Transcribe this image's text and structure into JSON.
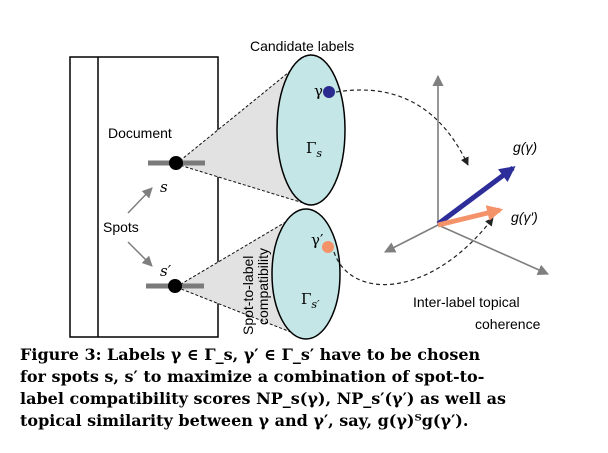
{
  "diagram": {
    "candidate_labels": "Candidate labels",
    "document": "Document",
    "spots": "Spots",
    "spot_s": "s",
    "spot_s_prime": "s′",
    "gamma": "γ",
    "gamma_prime": "γ′",
    "gamma_set_base": "Γ",
    "gamma_set_sub_s": "s",
    "gamma_set_sub_sp": "s′",
    "spot_to_label_line1": "Spot-to-label",
    "spot_to_label_line2": "compatibility",
    "g_gamma": "g(γ)",
    "g_gamma_prime": "g(γ′)",
    "inter_label_line1": "Inter-label topical",
    "inter_label_line2": "coherence"
  },
  "colors": {
    "ellipse_fill": "#c4e6e6",
    "cone_fill": "#e2e2e2",
    "gamma_dot": "#2b2b8f",
    "gamma_prime_dot": "#f4926a",
    "g_gamma_arrow": "#2e2e9a",
    "g_gamma_prime_arrow": "#f4926a",
    "axes": "#7f7f7f"
  },
  "caption": {
    "line1": "Figure 3: Labels γ ∈ Γ_s, γ′ ∈ Γ_s′ have to be chosen",
    "line2": "for spots s, s′ to maximize a combination of spot-to-",
    "line3": "label compatibility scores NP_s(γ), NP_s′(γ′) as well as",
    "line4": "topical similarity between γ and γ′, say, g(γ)ᵀg(γ′)."
  }
}
